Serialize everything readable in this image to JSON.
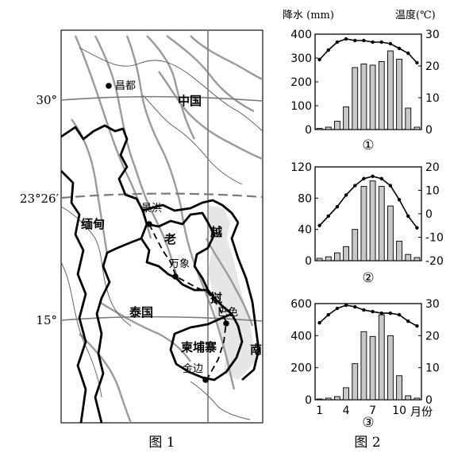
{
  "figure1": {
    "caption": "图 1",
    "lat_labels": {
      "lat30": "30°",
      "lat23": "23°26′",
      "lat15": "15°"
    },
    "countries": {
      "china": "中国",
      "myanmar": "缅甸",
      "laos_a": "老",
      "laos_b": "挝",
      "thailand": "泰国",
      "cambodia": "柬埔寨",
      "vietnam_a": "越",
      "vietnam_b": "南"
    },
    "cities": {
      "changdu": "昌都",
      "jinghong": "景洪",
      "vientiane": "万象",
      "pakse": "巴色",
      "phnompenh": "金边"
    }
  },
  "figure2": {
    "caption": "图 2",
    "left_axis_title": "降水 (mm)",
    "right_axis_title": "温度(℃)",
    "x_axis_title": "月份",
    "panel_labels": [
      "①",
      "②",
      "③"
    ]
  },
  "chart_data": [
    {
      "type": "bar",
      "panel": "①",
      "categories": [
        1,
        2,
        3,
        4,
        5,
        6,
        7,
        8,
        9,
        10,
        11,
        12
      ],
      "x_tick_labels": [],
      "precip_mm": [
        5,
        10,
        35,
        95,
        260,
        275,
        270,
        285,
        330,
        295,
        90,
        10
      ],
      "temp_c": [
        22,
        25,
        27.5,
        28.5,
        28,
        28,
        27.5,
        27.5,
        27,
        25.5,
        24,
        21
      ],
      "ylim_precip": [
        0,
        400
      ],
      "ylim_temp": [
        0,
        30
      ],
      "precip_ticks": [
        0,
        100,
        200,
        300,
        400
      ],
      "temp_ticks": [
        0,
        10,
        20,
        30
      ]
    },
    {
      "type": "bar",
      "panel": "②",
      "categories": [
        1,
        2,
        3,
        4,
        5,
        6,
        7,
        8,
        9,
        10,
        11,
        12
      ],
      "x_tick_labels": [],
      "precip_mm": [
        3,
        5,
        10,
        18,
        40,
        95,
        102,
        95,
        70,
        25,
        8,
        4
      ],
      "temp_c": [
        -5,
        -1,
        3,
        8,
        12,
        15,
        16,
        15,
        12,
        6,
        -1,
        -6
      ],
      "ylim_precip": [
        0,
        120
      ],
      "ylim_temp": [
        -20,
        20
      ],
      "precip_ticks": [
        0,
        40,
        80,
        120
      ],
      "temp_ticks": [
        -20,
        -10,
        0,
        10,
        20
      ]
    },
    {
      "type": "bar",
      "panel": "③",
      "categories": [
        1,
        2,
        3,
        4,
        5,
        6,
        7,
        8,
        9,
        10,
        11,
        12
      ],
      "x_tick_labels": [
        "1",
        "4",
        "7",
        "10"
      ],
      "precip_mm": [
        5,
        10,
        20,
        75,
        225,
        425,
        395,
        530,
        400,
        150,
        25,
        10
      ],
      "temp_c": [
        24,
        26.5,
        28.5,
        29.5,
        29,
        28,
        27.5,
        27,
        27,
        26.5,
        24.5,
        23
      ],
      "ylim_precip": [
        0,
        600
      ],
      "ylim_temp": [
        0,
        30
      ],
      "precip_ticks": [
        0,
        200,
        400,
        600
      ],
      "temp_ticks": [
        0,
        10,
        20,
        30
      ]
    }
  ]
}
